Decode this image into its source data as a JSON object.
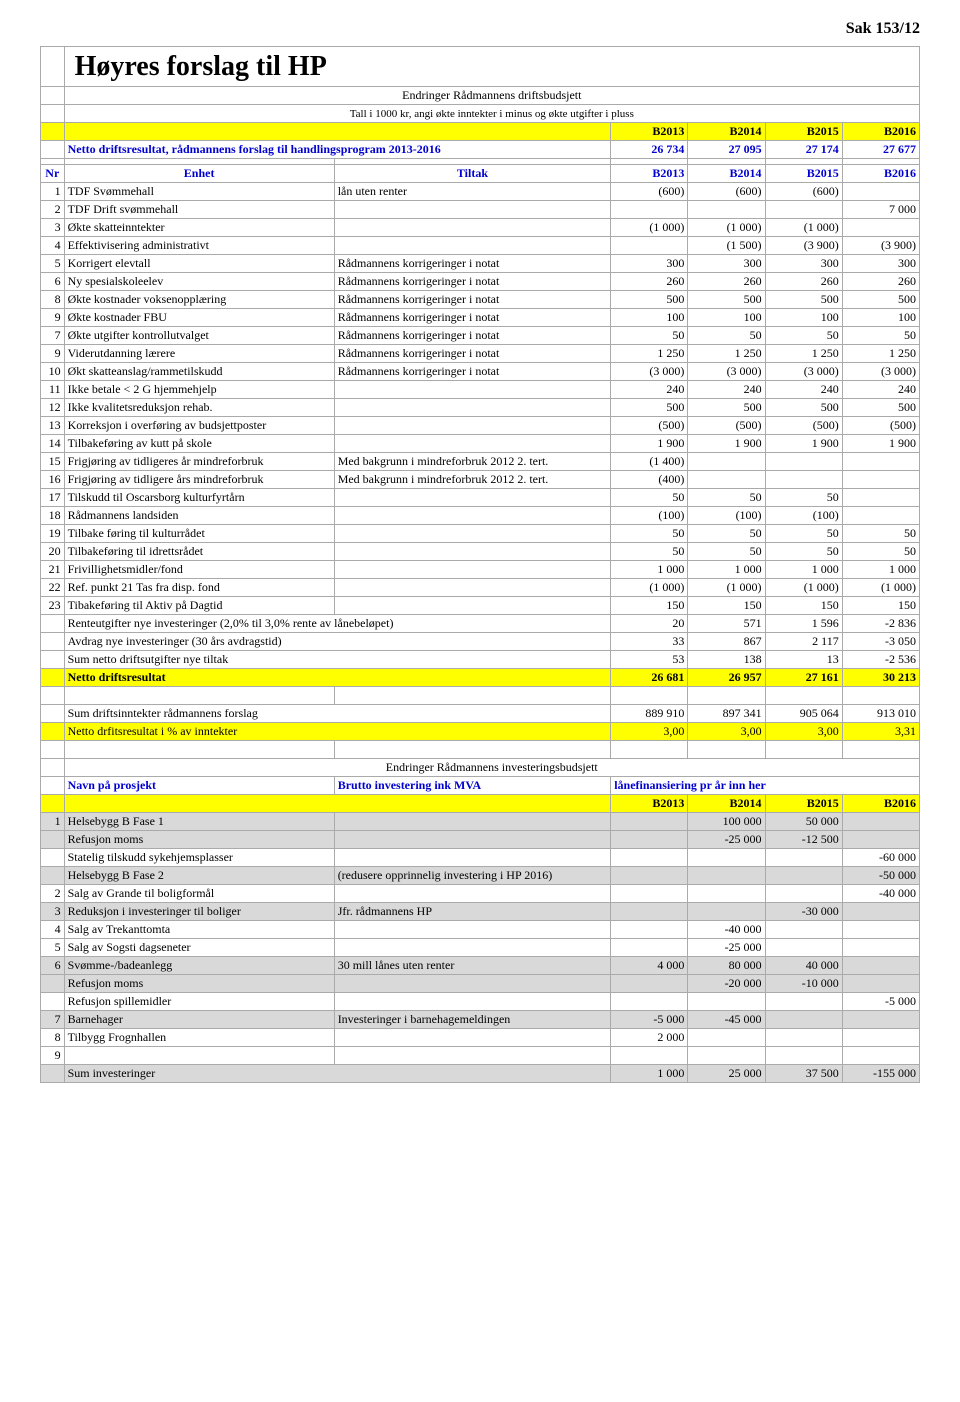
{
  "page_header": "Sak 153/12",
  "title": "Høyres forslag til HP",
  "sub1": "Endringer Rådmannens driftsbudsjett",
  "sub2": "Tall i 1000 kr, angi økte inntekter i minus og økte utgifter i pluss",
  "year_headers": [
    "B2013",
    "B2014",
    "B2015",
    "B2016"
  ],
  "netto_label": "Netto driftsresultat, rådmannens forslag til handlingsprogram 2013-2016",
  "netto_values": [
    "26 734",
    "27 095",
    "27 174",
    "27 677"
  ],
  "col_nr": "Nr",
  "col_enhet": "Enhet",
  "col_tiltak": "Tiltak",
  "rows": [
    {
      "nr": "1",
      "enhet": "TDF Svømmehall",
      "tiltak": "lån uten renter",
      "v": [
        "(600)",
        "(600)",
        "(600)",
        ""
      ]
    },
    {
      "nr": "2",
      "enhet": "TDF Drift svømmehall",
      "tiltak": "",
      "v": [
        "",
        "",
        "",
        "7 000"
      ]
    },
    {
      "nr": "3",
      "enhet": "Økte skatteinntekter",
      "tiltak": "",
      "v": [
        "(1 000)",
        "(1 000)",
        "(1 000)",
        ""
      ]
    },
    {
      "nr": "4",
      "enhet": "Effektivisering administrativt",
      "tiltak": "",
      "v": [
        "",
        "(1 500)",
        "(3 900)",
        "(3 900)"
      ]
    },
    {
      "nr": "5",
      "enhet": "Korrigert elevtall",
      "tiltak": "Rådmannens korrigeringer i notat",
      "v": [
        "300",
        "300",
        "300",
        "300"
      ]
    },
    {
      "nr": "6",
      "enhet": "Ny spesialskoleelev",
      "tiltak": "Rådmannens korrigeringer i notat",
      "v": [
        "260",
        "260",
        "260",
        "260"
      ]
    },
    {
      "nr": "8",
      "enhet": "Økte kostnader voksenopplæring",
      "tiltak": "Rådmannens korrigeringer i notat",
      "v": [
        "500",
        "500",
        "500",
        "500"
      ]
    },
    {
      "nr": "9",
      "enhet": "Økte kostnader FBU",
      "tiltak": "Rådmannens korrigeringer i notat",
      "v": [
        "100",
        "100",
        "100",
        "100"
      ]
    },
    {
      "nr": "7",
      "enhet": "Økte utgifter kontrollutvalget",
      "tiltak": "Rådmannens korrigeringer i notat",
      "v": [
        "50",
        "50",
        "50",
        "50"
      ]
    },
    {
      "nr": "9",
      "enhet": "Viderutdanning lærere",
      "tiltak": "Rådmannens korrigeringer i notat",
      "v": [
        "1 250",
        "1 250",
        "1 250",
        "1 250"
      ]
    },
    {
      "nr": "10",
      "enhet": "Økt skatteanslag/rammetilskudd",
      "tiltak": "Rådmannens korrigeringer i notat",
      "v": [
        "(3 000)",
        "(3 000)",
        "(3 000)",
        "(3 000)"
      ]
    },
    {
      "nr": "11",
      "enhet": "Ikke betale < 2 G hjemmehjelp",
      "tiltak": "",
      "v": [
        "240",
        "240",
        "240",
        "240"
      ]
    },
    {
      "nr": "12",
      "enhet": "Ikke kvalitetsreduksjon rehab.",
      "tiltak": "",
      "v": [
        "500",
        "500",
        "500",
        "500"
      ]
    },
    {
      "nr": "13",
      "enhet": "Korreksjon i overføring av budsjettposter",
      "tiltak": "",
      "v": [
        "(500)",
        "(500)",
        "(500)",
        "(500)"
      ]
    },
    {
      "nr": "14",
      "enhet": "Tilbakeføring av kutt på skole",
      "tiltak": "",
      "v": [
        "1 900",
        "1 900",
        "1 900",
        "1 900"
      ]
    },
    {
      "nr": "15",
      "enhet": "Frigjøring av tidligeres år mindreforbruk",
      "tiltak": "Med bakgrunn i mindreforbruk 2012 2. tert.",
      "v": [
        "(1 400)",
        "",
        "",
        ""
      ]
    },
    {
      "nr": "16",
      "enhet": "Frigjøring av tidligere års mindreforbruk",
      "tiltak": "Med bakgrunn i mindreforbruk 2012 2. tert.",
      "v": [
        "(400)",
        "",
        "",
        ""
      ]
    },
    {
      "nr": "17",
      "enhet": "Tilskudd til Oscarsborg kulturfyrtårn",
      "tiltak": "",
      "v": [
        "50",
        "50",
        "50",
        ""
      ]
    },
    {
      "nr": "18",
      "enhet": "Rådmannens landsiden",
      "tiltak": "",
      "v": [
        "(100)",
        "(100)",
        "(100)",
        ""
      ]
    },
    {
      "nr": "19",
      "enhet": "Tilbake føring til kulturrådet",
      "tiltak": "",
      "v": [
        "50",
        "50",
        "50",
        "50"
      ]
    },
    {
      "nr": "20",
      "enhet": "Tilbakeføring til idrettsrådet",
      "tiltak": "",
      "v": [
        "50",
        "50",
        "50",
        "50"
      ]
    },
    {
      "nr": "21",
      "enhet": "Frivillighetsmidler/fond",
      "tiltak": "",
      "v": [
        "1 000",
        "1 000",
        "1 000",
        "1 000"
      ]
    },
    {
      "nr": "22",
      "enhet": "Ref. punkt 21 Tas fra disp. fond",
      "tiltak": "",
      "v": [
        "(1 000)",
        "(1 000)",
        "(1 000)",
        "(1 000)"
      ]
    },
    {
      "nr": "23",
      "enhet": "Tibakeføring til Aktiv på Dagtid",
      "tiltak": "",
      "v": [
        "150",
        "150",
        "150",
        "150"
      ]
    }
  ],
  "calc_rows": [
    {
      "label": "Renteutgifter nye investeringer (2,0% til 3,0%  rente av lånebeløpet)",
      "v": [
        "20",
        "571",
        "1 596",
        "-2 836"
      ]
    },
    {
      "label": "Avdrag nye investeringer (30 års avdragstid)",
      "v": [
        "33",
        "867",
        "2 117",
        "-3 050"
      ]
    },
    {
      "label": "Sum netto driftsutgifter nye tiltak",
      "v": [
        "53",
        "138",
        "13",
        "-2 536"
      ]
    }
  ],
  "netto_drift_label": "Netto driftsresultat",
  "netto_drift_values": [
    "26 681",
    "26 957",
    "27 161",
    "30 213"
  ],
  "sum_drifts_label": "Sum driftsinntekter rådmannens forslag",
  "sum_drifts_values": [
    "889 910",
    "897 341",
    "905 064",
    "913 010"
  ],
  "netto_pct_label": "Netto drfitsresultat i % av inntekter",
  "netto_pct_values": [
    "3,00",
    "3,00",
    "3,00",
    "3,31"
  ],
  "invest_title": "Endringer Rådmannens investeringsbudsjett",
  "invest_col1": "Navn på prosjekt",
  "invest_col2": "Brutto investering ink MVA",
  "invest_col3": "lånefinansiering pr år inn her",
  "invest_rows": [
    {
      "nr": "1",
      "enhet": "Helsebygg B Fase 1",
      "tiltak": "",
      "v": [
        "",
        "100 000",
        "50 000",
        ""
      ],
      "grey": true
    },
    {
      "nr": "",
      "enhet": "Refusjon moms",
      "tiltak": "",
      "v": [
        "",
        "-25 000",
        "-12 500",
        ""
      ],
      "grey": true
    },
    {
      "nr": "",
      "enhet": "Statelig tilskudd sykehjemsplasser",
      "tiltak": "",
      "v": [
        "",
        "",
        "",
        "-60 000"
      ],
      "grey": false
    },
    {
      "nr": "",
      "enhet": "Helsebygg B Fase 2",
      "tiltak": "(redusere opprinnelig investering i HP 2016)",
      "v": [
        "",
        "",
        "",
        "-50 000"
      ],
      "grey": true
    },
    {
      "nr": "2",
      "enhet": "Salg av Grande til boligformål",
      "tiltak": "",
      "v": [
        "",
        "",
        "",
        "-40 000"
      ],
      "grey": false
    },
    {
      "nr": "3",
      "enhet": "Reduksjon i investeringer til boliger",
      "tiltak": "Jfr. rådmannens HP",
      "v": [
        "",
        "",
        "-30 000",
        ""
      ],
      "grey": true
    },
    {
      "nr": "4",
      "enhet": "Salg av Trekanttomta",
      "tiltak": "",
      "v": [
        "",
        "-40 000",
        "",
        ""
      ],
      "grey": false
    },
    {
      "nr": "5",
      "enhet": "Salg av Sogsti dagseneter",
      "tiltak": "",
      "v": [
        "",
        "-25 000",
        "",
        ""
      ],
      "grey": false
    },
    {
      "nr": "6",
      "enhet": "Svømme-/badeanlegg",
      "tiltak": "30 mill lånes uten renter",
      "v": [
        "4 000",
        "80 000",
        "40 000",
        ""
      ],
      "grey": true
    },
    {
      "nr": "",
      "enhet": "Refusjon moms",
      "tiltak": "",
      "v": [
        "",
        "-20 000",
        "-10 000",
        ""
      ],
      "grey": true
    },
    {
      "nr": "",
      "enhet": "Refusjon spillemidler",
      "tiltak": "",
      "v": [
        "",
        "",
        "",
        "-5 000"
      ],
      "grey": false
    },
    {
      "nr": "7",
      "enhet": "Barnehager",
      "tiltak": "Investeringer i barnehagemeldingen",
      "v": [
        "-5 000",
        "-45 000",
        "",
        ""
      ],
      "grey": true
    },
    {
      "nr": "8",
      "enhet": "Tilbygg Frognhallen",
      "tiltak": "",
      "v": [
        "2 000",
        "",
        "",
        ""
      ],
      "grey": false
    },
    {
      "nr": "9",
      "enhet": "",
      "tiltak": "",
      "v": [
        "",
        "",
        "",
        ""
      ],
      "grey": false
    }
  ],
  "sum_inv_label": "Sum investeringer",
  "sum_inv_values": [
    "1 000",
    "25 000",
    "37 500",
    "-155 000"
  ]
}
